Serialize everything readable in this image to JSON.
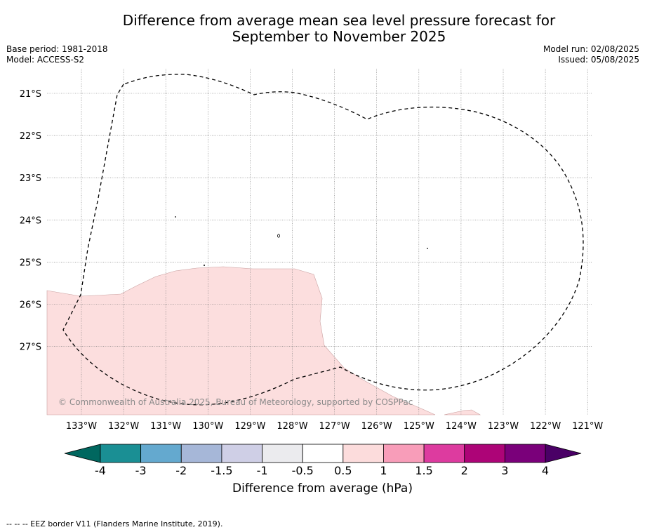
{
  "title_line1": "Difference from average mean sea level pressure forecast for",
  "title_line2": "September to November 2025",
  "meta_left": [
    "Base period: 1981-2018",
    "Model: ACCESS-S2"
  ],
  "meta_right": [
    "Model run: 02/08/2025",
    "Issued: 05/08/2025"
  ],
  "copyright": "© Commonwealth of Australia 2025, Bureau of Meteorology, supported by COSPPac",
  "lon_labels": [
    "133°W",
    "132°W",
    "131°W",
    "130°W",
    "129°W",
    "128°W",
    "127°W",
    "126°W",
    "125°W",
    "124°W",
    "123°W",
    "122°W",
    "121°W"
  ],
  "lat_labels": [
    "21°S",
    "22°S",
    "23°S",
    "24°S",
    "25°S",
    "26°S",
    "27°S"
  ],
  "colorbar": {
    "title": "Difference from average (hPa)",
    "ticks": [
      "-4",
      "-3",
      "-2",
      "-1.5",
      "-1",
      "-0.5",
      "0.5",
      "1",
      "1.5",
      "2",
      "3",
      "4"
    ],
    "colors": [
      "#1a8f94",
      "#64a9cf",
      "#a6b7d8",
      "#cfcfe6",
      "#ebebee",
      "#ffffff",
      "#fcdcdc",
      "#f89db9",
      "#dd3b9f",
      "#ad0477",
      "#7a007a"
    ],
    "under_color": "#00675f",
    "over_color": "#4a0066"
  },
  "map_fill_color": "#fcdede",
  "footnote": "--  --  -- EEZ border V11 (Flanders Marine Institute, 2019)."
}
